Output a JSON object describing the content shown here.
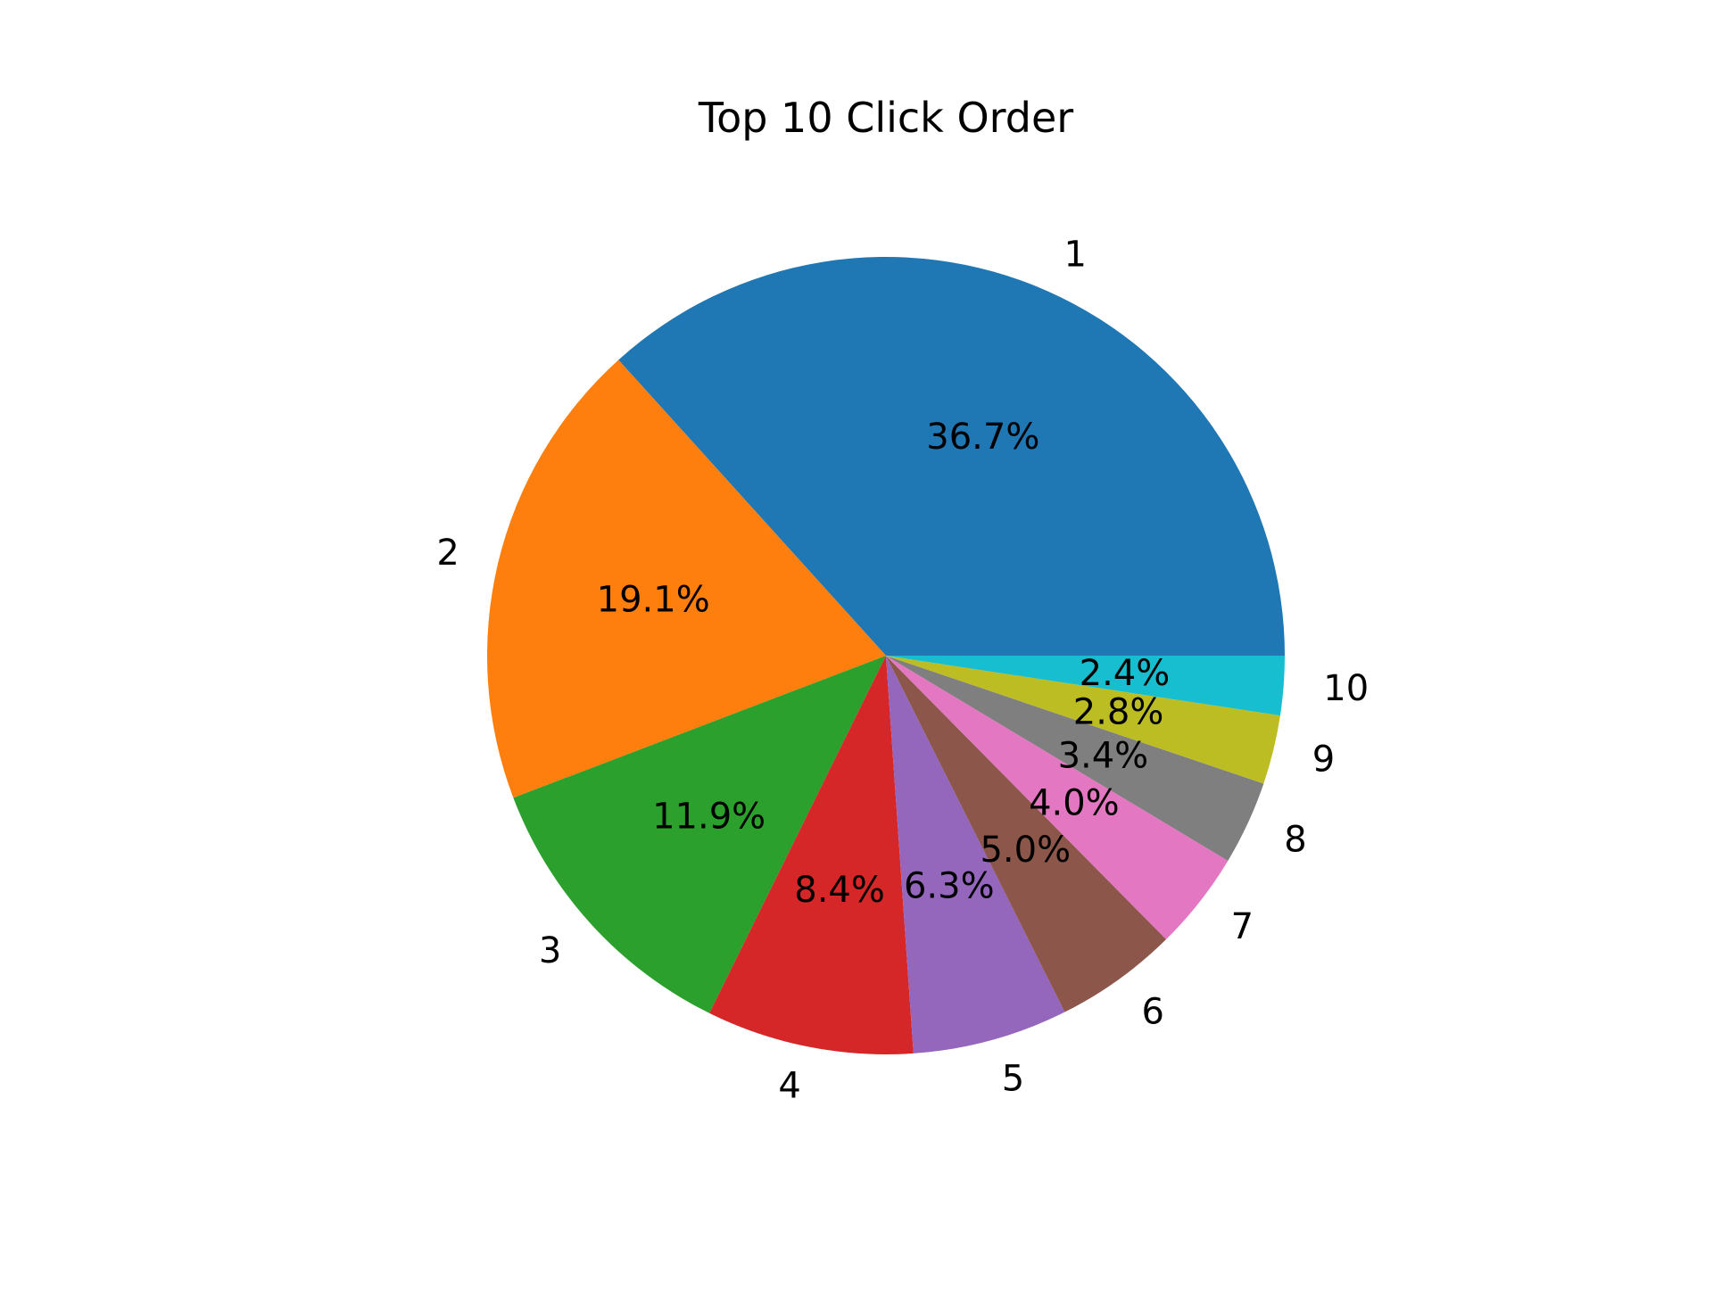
{
  "chart_data": {
    "type": "pie",
    "title": "Top 10 Click Order",
    "categories": [
      "1",
      "2",
      "3",
      "4",
      "5",
      "6",
      "7",
      "8",
      "9",
      "10"
    ],
    "values": [
      36.7,
      19.1,
      11.9,
      8.4,
      6.3,
      5.0,
      4.0,
      3.4,
      2.8,
      2.4
    ],
    "percent_labels": [
      "36.7%",
      "19.1%",
      "11.9%",
      "8.4%",
      "6.3%",
      "5.0%",
      "4.0%",
      "3.4%",
      "2.8%",
      "2.4%"
    ],
    "colors": [
      "#1f77b4",
      "#ff7f0e",
      "#2ca02c",
      "#d62728",
      "#9467bd",
      "#8c564b",
      "#e377c2",
      "#7f7f7f",
      "#bcbd22",
      "#17becf"
    ],
    "start_angle": 0,
    "direction": "counterclockwise",
    "legend": "none"
  }
}
